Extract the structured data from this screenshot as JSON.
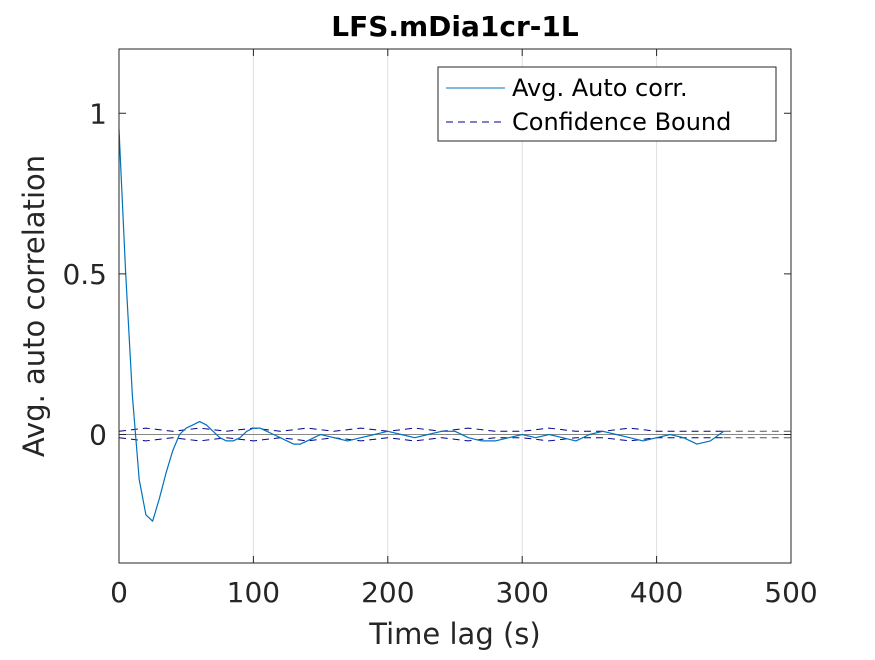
{
  "chart_data": {
    "type": "line",
    "title": "LFS.mDia1cr-1L",
    "xlabel": "Time lag (s)",
    "ylabel": "Avg. auto correlation",
    "xlim": [
      0,
      500
    ],
    "ylim": [
      -0.4,
      1.2
    ],
    "grid": "vertical",
    "legend_position": "top-right",
    "x_ticks": [
      "0",
      "100",
      "200",
      "300",
      "400",
      "500"
    ],
    "y_ticks": [
      "0",
      "0.5",
      "1"
    ],
    "series": [
      {
        "name": "Avg. Auto corr.",
        "color": "#0072BD",
        "style": "solid",
        "x": [
          0,
          5,
          10,
          15,
          20,
          25,
          30,
          35,
          40,
          45,
          50,
          55,
          60,
          65,
          70,
          75,
          80,
          85,
          90,
          95,
          100,
          105,
          110,
          115,
          120,
          125,
          130,
          135,
          140,
          145,
          150,
          160,
          170,
          180,
          190,
          200,
          210,
          220,
          230,
          240,
          250,
          260,
          270,
          280,
          290,
          300,
          310,
          320,
          330,
          340,
          350,
          360,
          370,
          380,
          390,
          400,
          410,
          420,
          430,
          440,
          450
        ],
        "y": [
          0.95,
          0.5,
          0.12,
          -0.14,
          -0.25,
          -0.27,
          -0.2,
          -0.12,
          -0.05,
          0.0,
          0.02,
          0.03,
          0.04,
          0.03,
          0.01,
          -0.01,
          -0.02,
          -0.02,
          -0.01,
          0.01,
          0.02,
          0.02,
          0.01,
          0.0,
          -0.01,
          -0.02,
          -0.03,
          -0.03,
          -0.02,
          -0.01,
          0.0,
          -0.01,
          -0.02,
          -0.01,
          0.0,
          0.01,
          0.0,
          -0.01,
          0.0,
          0.01,
          0.01,
          -0.01,
          -0.02,
          -0.02,
          -0.01,
          0.0,
          -0.01,
          0.0,
          -0.01,
          -0.02,
          0.0,
          0.01,
          0.0,
          -0.01,
          -0.02,
          -0.01,
          0.0,
          -0.01,
          -0.03,
          -0.02,
          0.01
        ]
      },
      {
        "name": "Confidence Bound",
        "color": "#00008B",
        "style": "dashed",
        "x": [
          0,
          20,
          40,
          60,
          80,
          100,
          120,
          140,
          160,
          180,
          200,
          220,
          240,
          260,
          280,
          300,
          320,
          340,
          360,
          380,
          400,
          420,
          440,
          450
        ],
        "y_upper": [
          0.01,
          0.02,
          0.01,
          0.02,
          0.01,
          0.02,
          0.01,
          0.02,
          0.01,
          0.02,
          0.01,
          0.02,
          0.01,
          0.02,
          0.01,
          0.01,
          0.02,
          0.01,
          0.01,
          0.02,
          0.01,
          0.01,
          0.01,
          0.01
        ],
        "y_lower": [
          -0.01,
          -0.02,
          -0.01,
          -0.02,
          -0.01,
          -0.02,
          -0.01,
          -0.02,
          -0.01,
          -0.02,
          -0.01,
          -0.02,
          -0.01,
          -0.02,
          -0.01,
          -0.01,
          -0.02,
          -0.01,
          -0.01,
          -0.02,
          -0.01,
          -0.01,
          -0.01,
          -0.01
        ]
      }
    ],
    "reference_lines": [
      {
        "axis": "y",
        "value": 0.01,
        "color": "#555555",
        "style": "dashed",
        "x_start": 450
      },
      {
        "axis": "y",
        "value": -0.01,
        "color": "#555555",
        "style": "dashed",
        "x_start": 450
      },
      {
        "axis": "y",
        "value": 0,
        "color": "#888888",
        "style": "solid",
        "x_start": 0
      }
    ]
  }
}
